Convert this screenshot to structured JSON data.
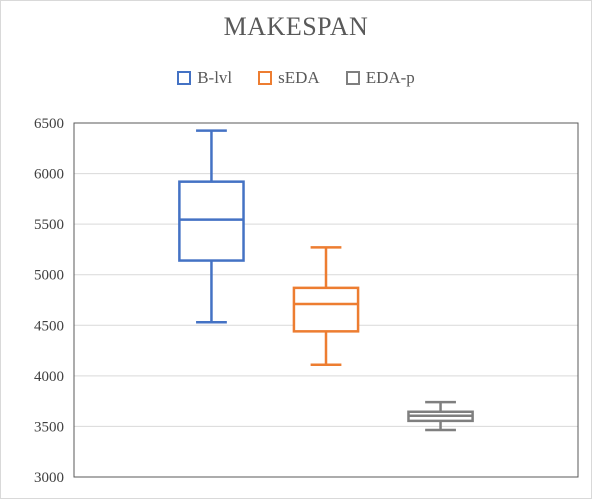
{
  "chart_data": {
    "type": "box",
    "title": "MAKESPAN",
    "xlabel": "",
    "ylabel": "",
    "ylim": [
      3000,
      6500
    ],
    "yticks": [
      3000,
      3500,
      4000,
      4500,
      5000,
      5500,
      6000,
      6500
    ],
    "grid": true,
    "legend_position": "top",
    "series": [
      {
        "name": "B-lvl",
        "color": "#4472c4",
        "min": 4530,
        "q1": 5140,
        "median": 5545,
        "q3": 5920,
        "max": 6425
      },
      {
        "name": "sEDA",
        "color": "#ed7d31",
        "min": 4110,
        "q1": 4440,
        "median": 4710,
        "q3": 4870,
        "max": 5270
      },
      {
        "name": "EDA-p",
        "color": "#7f7f7f",
        "min": 3465,
        "q1": 3555,
        "median": 3605,
        "q3": 3645,
        "max": 3740
      }
    ]
  }
}
